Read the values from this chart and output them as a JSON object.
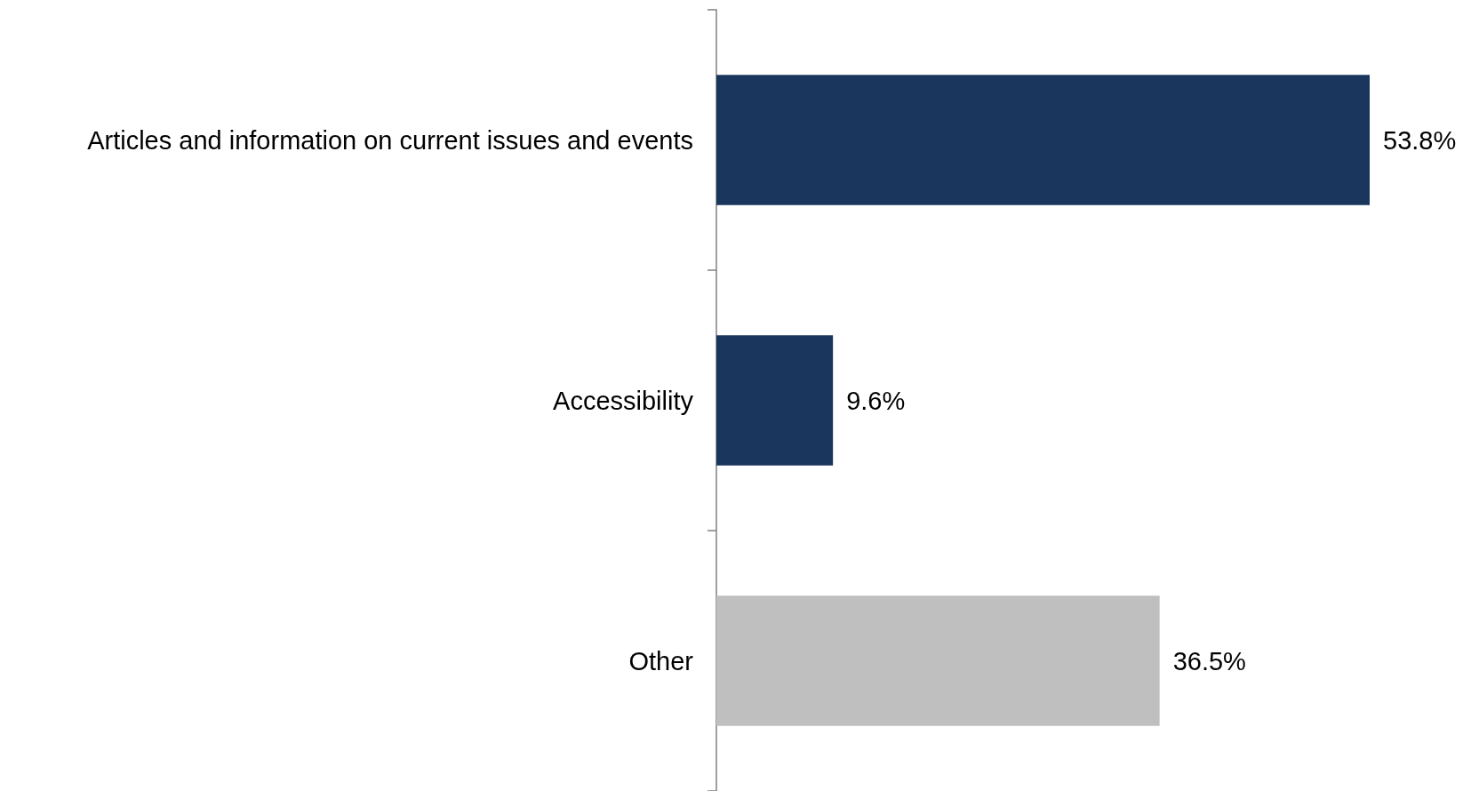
{
  "chart_data": {
    "type": "bar",
    "orientation": "horizontal",
    "categories": [
      "Articles and information on current issues and events",
      "Accessibility",
      "Other"
    ],
    "values": [
      53.8,
      9.6,
      36.5
    ],
    "colors": [
      "#1b365d",
      "#1b365d",
      "#bfbfbf"
    ],
    "value_labels": [
      "53.8%",
      "9.6%",
      "36.5%"
    ]
  }
}
